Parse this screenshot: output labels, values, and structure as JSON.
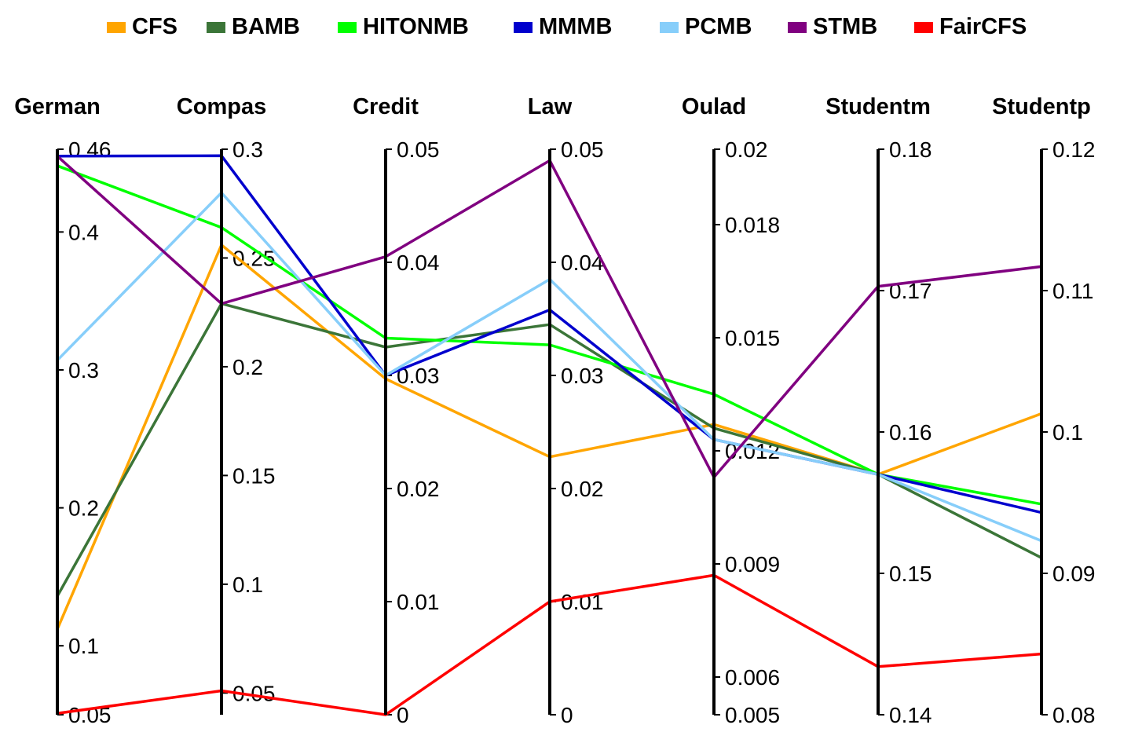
{
  "chart_data": {
    "type": "parallel-coordinates",
    "series": [
      {
        "name": "CFS",
        "color": "#FFA500",
        "values": [
          0.112,
          0.256,
          0.0297,
          0.0228,
          0.0127,
          0.157,
          0.1013
        ]
      },
      {
        "name": "BAMB",
        "color": "#3B7538",
        "values": [
          0.136,
          0.229,
          0.0325,
          0.0345,
          0.0126,
          0.157,
          0.0911
        ]
      },
      {
        "name": "HITONMB",
        "color": "#00FF00",
        "values": [
          0.448,
          0.264,
          0.0333,
          0.0327,
          0.0135,
          0.157,
          0.0949
        ]
      },
      {
        "name": "MMMB",
        "color": "#0000CD",
        "values": [
          0.455,
          0.297,
          0.03,
          0.0358,
          0.0123,
          0.157,
          0.0943
        ]
      },
      {
        "name": "PCMB",
        "color": "#87CEFA",
        "values": [
          0.307,
          0.28,
          0.03,
          0.0385,
          0.0123,
          0.157,
          0.0923
        ]
      },
      {
        "name": "STMB",
        "color": "#800080",
        "values": [
          0.455,
          0.229,
          0.0405,
          0.049,
          0.0113,
          0.1703,
          0.1117
        ]
      },
      {
        "name": "FairCFS",
        "color": "#FF0000",
        "values": [
          0.051,
          0.051,
          0.0,
          0.01,
          0.0087,
          0.1434,
          0.0843
        ]
      }
    ],
    "axes": [
      {
        "name": "German",
        "ylim": [
          0.05,
          0.46
        ],
        "ticks": [
          {
            "value": 0.05,
            "label": "0.05"
          },
          {
            "value": 0.1,
            "label": "0.1"
          },
          {
            "value": 0.2,
            "label": "0.2"
          },
          {
            "value": 0.3,
            "label": "0.3"
          },
          {
            "value": 0.4,
            "label": "0.4"
          },
          {
            "value": 0.46,
            "label": "0.46"
          }
        ]
      },
      {
        "name": "Compas",
        "ylim": [
          0.04,
          0.3
        ],
        "ticks": [
          {
            "value": 0.05,
            "label": "0.05"
          },
          {
            "value": 0.1,
            "label": "0.1"
          },
          {
            "value": 0.15,
            "label": "0.15"
          },
          {
            "value": 0.2,
            "label": "0.2"
          },
          {
            "value": 0.25,
            "label": "0.25"
          },
          {
            "value": 0.3,
            "label": "0.3"
          }
        ]
      },
      {
        "name": "Credit",
        "ylim": [
          0,
          0.05
        ],
        "ticks": [
          {
            "value": 0,
            "label": "0"
          },
          {
            "value": 0.01,
            "label": "0.01"
          },
          {
            "value": 0.02,
            "label": "0.02"
          },
          {
            "value": 0.03,
            "label": "0.03"
          },
          {
            "value": 0.04,
            "label": "0.04"
          },
          {
            "value": 0.05,
            "label": "0.05"
          }
        ]
      },
      {
        "name": "Law",
        "ylim": [
          0,
          0.05
        ],
        "ticks": [
          {
            "value": 0,
            "label": "0"
          },
          {
            "value": 0.01,
            "label": "0.01"
          },
          {
            "value": 0.02,
            "label": "0.02"
          },
          {
            "value": 0.03,
            "label": "0.03"
          },
          {
            "value": 0.04,
            "label": "0.04"
          },
          {
            "value": 0.05,
            "label": "0.05"
          }
        ]
      },
      {
        "name": "Oulad",
        "ylim": [
          0.005,
          0.02
        ],
        "ticks": [
          {
            "value": 0.005,
            "label": "0.005"
          },
          {
            "value": 0.006,
            "label": "0.006"
          },
          {
            "value": 0.009,
            "label": "0.009"
          },
          {
            "value": 0.012,
            "label": "0.012"
          },
          {
            "value": 0.015,
            "label": "0.015"
          },
          {
            "value": 0.018,
            "label": "0.018"
          },
          {
            "value": 0.02,
            "label": "0.02"
          }
        ]
      },
      {
        "name": "Studentm",
        "ylim": [
          0.14,
          0.18
        ],
        "ticks": [
          {
            "value": 0.14,
            "label": "0.14"
          },
          {
            "value": 0.15,
            "label": "0.15"
          },
          {
            "value": 0.16,
            "label": "0.16"
          },
          {
            "value": 0.17,
            "label": "0.17"
          },
          {
            "value": 0.18,
            "label": "0.18"
          }
        ]
      },
      {
        "name": "Studentp",
        "ylim": [
          0.08,
          0.12
        ],
        "ticks": [
          {
            "value": 0.08,
            "label": "0.08"
          },
          {
            "value": 0.09,
            "label": "0.09"
          },
          {
            "value": 0.1,
            "label": "0.1"
          },
          {
            "value": 0.11,
            "label": "0.11"
          },
          {
            "value": 0.12,
            "label": "0.12"
          }
        ]
      }
    ],
    "legend_position": "top"
  }
}
